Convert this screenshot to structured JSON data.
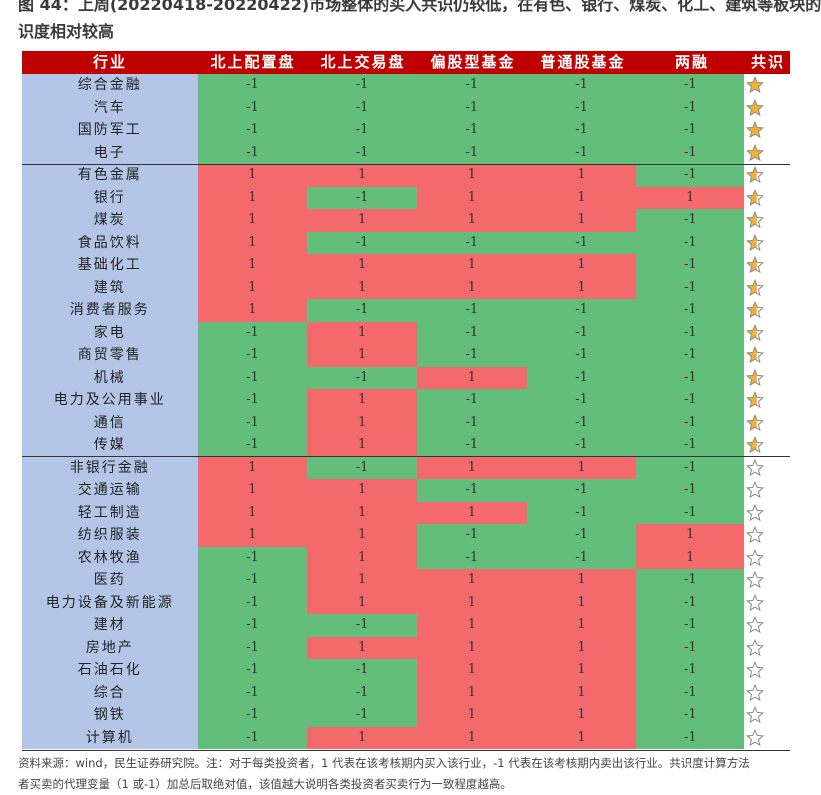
{
  "title": {
    "line1": "图 44：上周(20220418-20220422)市场整体的买入共识仍较低，在有色、银行、煤炭、化工、建筑等板块的",
    "line2": "识度相对较高"
  },
  "colors": {
    "header": "#c00000",
    "industry": "#b4c6e7",
    "buy": "#f4696b",
    "sell": "#63be7b",
    "star_fill": "#f2b134"
  },
  "chart_data": {
    "type": "table",
    "columns": [
      "行业",
      "北上配置盘",
      "北上交易盘",
      "偏股型基金",
      "普通股基金",
      "两融",
      "共识"
    ],
    "rows": [
      {
        "industry": "综合金融",
        "values": [
          -1,
          -1,
          -1,
          -1,
          -1
        ],
        "consensus": 1.0
      },
      {
        "industry": "汽车",
        "values": [
          -1,
          -1,
          -1,
          -1,
          -1
        ],
        "consensus": 1.0
      },
      {
        "industry": "国防军工",
        "values": [
          -1,
          -1,
          -1,
          -1,
          -1
        ],
        "consensus": 1.0
      },
      {
        "industry": "电子",
        "values": [
          -1,
          -1,
          -1,
          -1,
          -1
        ],
        "consensus": 1.0
      },
      {
        "industry": "有色金属",
        "values": [
          1,
          1,
          1,
          1,
          -1
        ],
        "consensus": 0.6
      },
      {
        "industry": "银行",
        "values": [
          1,
          -1,
          1,
          1,
          1
        ],
        "consensus": 0.6
      },
      {
        "industry": "煤炭",
        "values": [
          1,
          1,
          1,
          1,
          -1
        ],
        "consensus": 0.6
      },
      {
        "industry": "食品饮料",
        "values": [
          1,
          -1,
          -1,
          -1,
          -1
        ],
        "consensus": 0.6
      },
      {
        "industry": "基础化工",
        "values": [
          1,
          1,
          1,
          1,
          -1
        ],
        "consensus": 0.6
      },
      {
        "industry": "建筑",
        "values": [
          1,
          1,
          1,
          1,
          -1
        ],
        "consensus": 0.6
      },
      {
        "industry": "消费者服务",
        "values": [
          1,
          -1,
          -1,
          -1,
          -1
        ],
        "consensus": 0.6
      },
      {
        "industry": "家电",
        "values": [
          -1,
          1,
          -1,
          -1,
          -1
        ],
        "consensus": 0.6
      },
      {
        "industry": "商贸零售",
        "values": [
          -1,
          1,
          -1,
          -1,
          -1
        ],
        "consensus": 0.6
      },
      {
        "industry": "机械",
        "values": [
          -1,
          -1,
          1,
          -1,
          -1
        ],
        "consensus": 0.6
      },
      {
        "industry": "电力及公用事业",
        "values": [
          -1,
          1,
          -1,
          -1,
          -1
        ],
        "consensus": 0.6
      },
      {
        "industry": "通信",
        "values": [
          -1,
          1,
          -1,
          -1,
          -1
        ],
        "consensus": 0.6
      },
      {
        "industry": "传媒",
        "values": [
          -1,
          1,
          -1,
          -1,
          -1
        ],
        "consensus": 0.6
      },
      {
        "industry": "非银行金融",
        "values": [
          1,
          -1,
          1,
          1,
          -1
        ],
        "consensus": 0.2
      },
      {
        "industry": "交通运输",
        "values": [
          1,
          1,
          -1,
          -1,
          -1
        ],
        "consensus": 0.2
      },
      {
        "industry": "轻工制造",
        "values": [
          1,
          1,
          1,
          -1,
          -1
        ],
        "consensus": 0.2
      },
      {
        "industry": "纺织服装",
        "values": [
          1,
          1,
          -1,
          -1,
          1
        ],
        "consensus": 0.2
      },
      {
        "industry": "农林牧渔",
        "values": [
          -1,
          1,
          -1,
          -1,
          1
        ],
        "consensus": 0.2
      },
      {
        "industry": "医药",
        "values": [
          -1,
          1,
          1,
          1,
          -1
        ],
        "consensus": 0.2
      },
      {
        "industry": "电力设备及新能源",
        "values": [
          -1,
          1,
          1,
          1,
          -1
        ],
        "consensus": 0.2
      },
      {
        "industry": "建材",
        "values": [
          -1,
          -1,
          1,
          1,
          -1
        ],
        "consensus": 0.2
      },
      {
        "industry": "房地产",
        "values": [
          -1,
          1,
          1,
          1,
          -1
        ],
        "consensus": 0.2
      },
      {
        "industry": "石油石化",
        "values": [
          -1,
          -1,
          1,
          1,
          -1
        ],
        "consensus": 0.2
      },
      {
        "industry": "综合",
        "values": [
          -1,
          -1,
          1,
          1,
          -1
        ],
        "consensus": 0.2
      },
      {
        "industry": "钢铁",
        "values": [
          -1,
          -1,
          1,
          1,
          -1
        ],
        "consensus": 0.2
      },
      {
        "industry": "计算机",
        "values": [
          -1,
          1,
          1,
          1,
          -1
        ],
        "consensus": 0.2
      }
    ]
  },
  "note": {
    "line1": "资料来源：wind，民生证券研究院。注：对于每类投资者，1 代表在该考核期内买入该行业，-1 代表在该考核期内卖出该行业。共识度计算方法",
    "line2": "者买卖的代理变量（1 或-1）加总后取绝对值，该值越大说明各类投资者买卖行为一致程度越高。"
  }
}
